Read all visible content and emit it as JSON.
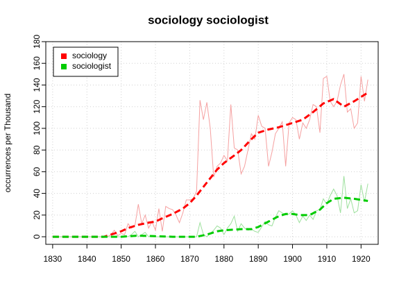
{
  "chart_data": {
    "type": "line",
    "title": "sociology sociologist",
    "ylabel": "occurrences per Thousand",
    "x": [
      1830,
      1831,
      1832,
      1833,
      1834,
      1835,
      1836,
      1837,
      1838,
      1839,
      1840,
      1841,
      1842,
      1843,
      1844,
      1845,
      1846,
      1847,
      1848,
      1849,
      1850,
      1851,
      1852,
      1853,
      1854,
      1855,
      1856,
      1857,
      1858,
      1859,
      1860,
      1861,
      1862,
      1863,
      1864,
      1865,
      1866,
      1867,
      1868,
      1869,
      1870,
      1871,
      1872,
      1873,
      1874,
      1875,
      1876,
      1877,
      1878,
      1879,
      1880,
      1881,
      1882,
      1883,
      1884,
      1885,
      1886,
      1887,
      1888,
      1889,
      1890,
      1891,
      1892,
      1893,
      1894,
      1895,
      1896,
      1897,
      1898,
      1899,
      1900,
      1901,
      1902,
      1903,
      1904,
      1905,
      1906,
      1907,
      1908,
      1909,
      1910,
      1911,
      1912,
      1913,
      1914,
      1915,
      1916,
      1917,
      1918,
      1919,
      1920,
      1921,
      1922
    ],
    "series": [
      {
        "name": "sociology",
        "color": "#ff0000",
        "raw_color": "#f5a0a0",
        "values": [
          0,
          0,
          0,
          0,
          0,
          0,
          0,
          0,
          0,
          0,
          0,
          0,
          0,
          0,
          0,
          0,
          0,
          2,
          6,
          1,
          3,
          2,
          12,
          8,
          10,
          30,
          12,
          20,
          8,
          14,
          6,
          26,
          5,
          28,
          26,
          25,
          20,
          13,
          22,
          34,
          34,
          35,
          42,
          126,
          108,
          124,
          100,
          55,
          65,
          68,
          75,
          70,
          122,
          82,
          80,
          58,
          65,
          80,
          95,
          90,
          112,
          102,
          100,
          65,
          78,
          95,
          100,
          106,
          65,
          105,
          110,
          108,
          90,
          105,
          100,
          108,
          122,
          120,
          96,
          146,
          148,
          125,
          120,
          125,
          140,
          150,
          115,
          118,
          100,
          105,
          148,
          125,
          145
        ],
        "smooth": {
          "x": [
            1830,
            1845,
            1848,
            1850,
            1852,
            1855,
            1858,
            1860,
            1862,
            1865,
            1868,
            1870,
            1872,
            1875,
            1878,
            1880,
            1883,
            1885,
            1888,
            1890,
            1893,
            1896,
            1900,
            1903,
            1906,
            1909,
            1912,
            1915,
            1918,
            1922
          ],
          "values": [
            0,
            0,
            3,
            5,
            8,
            11,
            13,
            14,
            17,
            21,
            26,
            31,
            38,
            50,
            62,
            68,
            75,
            80,
            90,
            96,
            99,
            101,
            105,
            108,
            115,
            123,
            127,
            120,
            125,
            133
          ]
        }
      },
      {
        "name": "sociologist",
        "color": "#00cc00",
        "raw_color": "#9de09d",
        "values": [
          0,
          0,
          0,
          0,
          0,
          0,
          0,
          0,
          0,
          0,
          0,
          0,
          0,
          0,
          0,
          0,
          0,
          0,
          0,
          0,
          0,
          1,
          0,
          2,
          5,
          0,
          2,
          4,
          0,
          1,
          0,
          0,
          0,
          0,
          0,
          0,
          0,
          0,
          0,
          0,
          0,
          0,
          0,
          13,
          2,
          0,
          3,
          6,
          10,
          8,
          2,
          8,
          12,
          19,
          5,
          12,
          8,
          6,
          7,
          5,
          4,
          9,
          14,
          11,
          10,
          18,
          24,
          22,
          20,
          21,
          24,
          20,
          13,
          19,
          15,
          20,
          16,
          24,
          25,
          35,
          30,
          38,
          44,
          38,
          22,
          56,
          26,
          35,
          22,
          24,
          48,
          32,
          49
        ],
        "smooth": {
          "x": [
            1830,
            1850,
            1855,
            1860,
            1865,
            1872,
            1875,
            1878,
            1880,
            1885,
            1888,
            1890,
            1893,
            1896,
            1898,
            1900,
            1902,
            1905,
            1908,
            1910,
            1912,
            1915,
            1918,
            1920,
            1922
          ],
          "values": [
            0,
            0,
            1,
            0.5,
            0,
            0,
            2,
            5,
            6,
            7,
            7,
            9,
            14,
            19,
            21,
            21,
            20,
            20,
            25,
            31,
            35,
            36,
            35,
            34,
            33
          ]
        }
      }
    ],
    "xlim": [
      1828,
      1925
    ],
    "ylim": [
      -7,
      180
    ],
    "xticks": [
      1830,
      1840,
      1850,
      1860,
      1870,
      1880,
      1890,
      1900,
      1910,
      1920
    ],
    "yticks": [
      0,
      20,
      40,
      60,
      80,
      100,
      120,
      140,
      160,
      180
    ],
    "grid": true,
    "legend": "top-left"
  }
}
